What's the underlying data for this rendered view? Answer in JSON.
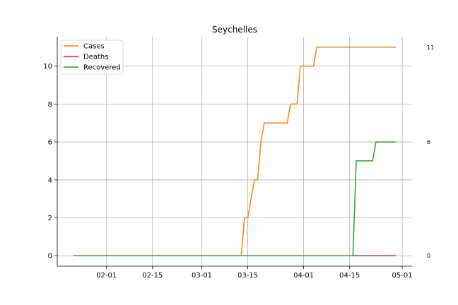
{
  "chart_data": {
    "type": "line",
    "title": "Seychelles",
    "xlabel": "",
    "ylabel": "",
    "x_start": "2020-01-22",
    "x_end": "2020-04-29",
    "x_ticks": [
      {
        "date": "2020-02-01",
        "label": "02-01"
      },
      {
        "date": "2020-02-15",
        "label": "02-15"
      },
      {
        "date": "2020-03-01",
        "label": "03-01"
      },
      {
        "date": "2020-03-15",
        "label": "03-15"
      },
      {
        "date": "2020-04-01",
        "label": "04-01"
      },
      {
        "date": "2020-04-15",
        "label": "04-15"
      },
      {
        "date": "2020-05-01",
        "label": "05-01"
      }
    ],
    "xlim": [
      "2020-01-17",
      "2020-05-04"
    ],
    "ylim": [
      -0.55,
      11.55
    ],
    "y_ticks": [
      0,
      2,
      4,
      6,
      8,
      10
    ],
    "grid": true,
    "legend_position": "top-left",
    "end_labels": [
      "11",
      "6",
      "0"
    ],
    "series": [
      {
        "name": "Cases",
        "color": "#ff7f0e",
        "points": [
          [
            "2020-01-22",
            0
          ],
          [
            "2020-03-13",
            0
          ],
          [
            "2020-03-14",
            2
          ],
          [
            "2020-03-15",
            2
          ],
          [
            "2020-03-17",
            4
          ],
          [
            "2020-03-18",
            4
          ],
          [
            "2020-03-19",
            6
          ],
          [
            "2020-03-20",
            7
          ],
          [
            "2020-03-27",
            7
          ],
          [
            "2020-03-28",
            8
          ],
          [
            "2020-03-30",
            8
          ],
          [
            "2020-03-31",
            10
          ],
          [
            "2020-04-04",
            10
          ],
          [
            "2020-04-05",
            11
          ],
          [
            "2020-04-29",
            11
          ]
        ]
      },
      {
        "name": "Deaths",
        "color": "#d62728",
        "points": [
          [
            "2020-01-22",
            0
          ],
          [
            "2020-04-29",
            0
          ]
        ]
      },
      {
        "name": "Recovered",
        "color": "#2ca02c",
        "points": [
          [
            "2020-01-22",
            0
          ],
          [
            "2020-04-16",
            0
          ],
          [
            "2020-04-17",
            5
          ],
          [
            "2020-04-22",
            5
          ],
          [
            "2020-04-23",
            6
          ],
          [
            "2020-04-29",
            6
          ]
        ]
      }
    ]
  }
}
